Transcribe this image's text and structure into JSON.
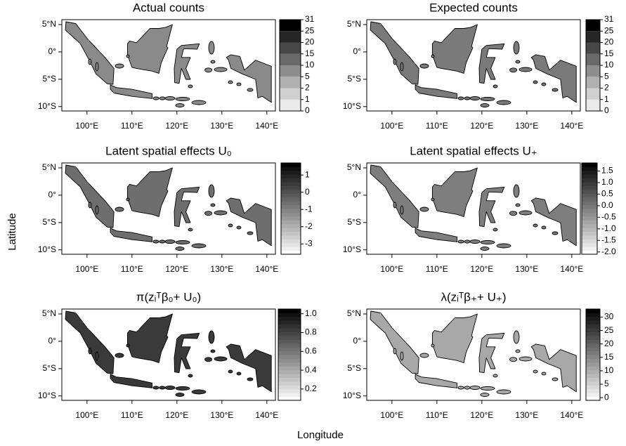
{
  "chart_data": [
    {
      "type": "map",
      "title": "Actual counts",
      "xlim": [
        94.4,
        141.9
      ],
      "ylim": [
        -10.8,
        5.9
      ],
      "xticks": [
        {
          "value": 100,
          "label": "100°E"
        },
        {
          "value": 110,
          "label": "110°E"
        },
        {
          "value": 120,
          "label": "120°E"
        },
        {
          "value": 130,
          "label": "130°E"
        },
        {
          "value": 140,
          "label": "140°E"
        }
      ],
      "yticks": [
        {
          "value": 5,
          "label": "5°N"
        },
        {
          "value": 0,
          "label": "0°"
        },
        {
          "value": -5,
          "label": "5°S"
        },
        {
          "value": -10,
          "label": "10°S"
        }
      ],
      "colorbar": {
        "scale": "breaks",
        "breaks": [
          0,
          1,
          2,
          5,
          10,
          15,
          20,
          25,
          31
        ],
        "colors": [
          "#ffffff",
          "#eaeaea",
          "#d0d0d0",
          "#b0b0b0",
          "#8e8e8e",
          "#6a6a6a",
          "#474747",
          "#262626",
          "#000000"
        ]
      }
    },
    {
      "type": "map",
      "title": "Expected counts",
      "xlim": [
        94.4,
        141.9
      ],
      "ylim": [
        -10.8,
        5.9
      ],
      "xticks": [
        {
          "value": 100,
          "label": "100°E"
        },
        {
          "value": 110,
          "label": "110°E"
        },
        {
          "value": 120,
          "label": "120°E"
        },
        {
          "value": 130,
          "label": "130°E"
        },
        {
          "value": 140,
          "label": "140°E"
        }
      ],
      "yticks": [
        {
          "value": 5,
          "label": "5°N"
        },
        {
          "value": 0,
          "label": "0°"
        },
        {
          "value": -5,
          "label": "5°S"
        },
        {
          "value": -10,
          "label": "10°S"
        }
      ],
      "colorbar": {
        "scale": "breaks",
        "breaks": [
          0,
          1,
          2,
          5,
          10,
          15,
          20,
          25,
          31
        ],
        "colors": [
          "#ffffff",
          "#eaeaea",
          "#d0d0d0",
          "#b0b0b0",
          "#8e8e8e",
          "#6a6a6a",
          "#474747",
          "#262626",
          "#000000"
        ]
      }
    },
    {
      "type": "map",
      "title": "Latent spatial effects U₀",
      "xlim": [
        94.4,
        141.9
      ],
      "ylim": [
        -10.8,
        5.9
      ],
      "xticks": [
        {
          "value": 100,
          "label": "100°E"
        },
        {
          "value": 110,
          "label": "110°E"
        },
        {
          "value": 120,
          "label": "120°E"
        },
        {
          "value": 130,
          "label": "130°E"
        },
        {
          "value": 140,
          "label": "140°E"
        }
      ],
      "yticks": [
        {
          "value": 5,
          "label": "5°N"
        },
        {
          "value": 0,
          "label": "0°"
        },
        {
          "value": -5,
          "label": "5°S"
        },
        {
          "value": -10,
          "label": "10°S"
        }
      ],
      "colorbar": {
        "scale": "linear",
        "clim": [
          -3.6,
          1.7
        ],
        "ticks": [
          1,
          0,
          -1,
          -2,
          -3
        ],
        "colors": [
          "#ffffff",
          "#000000"
        ]
      }
    },
    {
      "type": "map",
      "title": "Latent spatial effects U₊",
      "xlim": [
        94.4,
        141.9
      ],
      "ylim": [
        -10.8,
        5.9
      ],
      "xticks": [
        {
          "value": 100,
          "label": "100°E"
        },
        {
          "value": 110,
          "label": "110°E"
        },
        {
          "value": 120,
          "label": "120°E"
        },
        {
          "value": 130,
          "label": "130°E"
        },
        {
          "value": 140,
          "label": "140°E"
        }
      ],
      "yticks": [
        {
          "value": 5,
          "label": "5°N"
        },
        {
          "value": 0,
          "label": "0°"
        },
        {
          "value": -5,
          "label": "5°S"
        },
        {
          "value": -10,
          "label": "10°S"
        }
      ],
      "colorbar": {
        "scale": "linear",
        "clim": [
          -2.1,
          1.85
        ],
        "ticks": [
          {
            "value": 1.5,
            "label": "1.5"
          },
          {
            "value": 1,
            "label": "1.0"
          },
          {
            "value": 0.5,
            "label": "0.5"
          },
          {
            "value": 0,
            "label": "0.0"
          },
          {
            "value": -0.5,
            "label": "-0.5"
          },
          {
            "value": -1,
            "label": "-1.0"
          },
          {
            "value": -1.5,
            "label": "-1.5"
          },
          {
            "value": -2,
            "label": "-2.0"
          }
        ],
        "colors": [
          "#ffffff",
          "#000000"
        ]
      }
    },
    {
      "type": "map",
      "title": "π(zᵢᵀβ₀+ U₀)",
      "xlim": [
        94.4,
        141.9
      ],
      "ylim": [
        -10.8,
        5.9
      ],
      "xticks": [
        {
          "value": 100,
          "label": "100°E"
        },
        {
          "value": 110,
          "label": "110°E"
        },
        {
          "value": 120,
          "label": "120°E"
        },
        {
          "value": 130,
          "label": "130°E"
        },
        {
          "value": 140,
          "label": "140°E"
        }
      ],
      "yticks": [
        {
          "value": 5,
          "label": "5°N"
        },
        {
          "value": 0,
          "label": "0°"
        },
        {
          "value": -5,
          "label": "5°S"
        },
        {
          "value": -10,
          "label": "10°S"
        }
      ],
      "colorbar": {
        "scale": "linear",
        "clim": [
          0.08,
          1.05
        ],
        "ticks": [
          {
            "value": 1,
            "label": "1.0"
          },
          0.8,
          0.6,
          0.4,
          0.2
        ],
        "colors": [
          "#ffffff",
          "#000000"
        ]
      }
    },
    {
      "type": "map",
      "title": "λ(zᵢᵀβ₊+ U₊)",
      "xlim": [
        94.4,
        141.9
      ],
      "ylim": [
        -10.8,
        5.9
      ],
      "xticks": [
        {
          "value": 100,
          "label": "100°E"
        },
        {
          "value": 110,
          "label": "110°E"
        },
        {
          "value": 120,
          "label": "120°E"
        },
        {
          "value": 130,
          "label": "130°E"
        },
        {
          "value": 140,
          "label": "140°E"
        }
      ],
      "yticks": [
        {
          "value": 5,
          "label": "5°N"
        },
        {
          "value": 0,
          "label": "0°"
        },
        {
          "value": -5,
          "label": "5°S"
        },
        {
          "value": -10,
          "label": "10°S"
        }
      ],
      "colorbar": {
        "scale": "linear",
        "clim": [
          -1,
          33
        ],
        "ticks": [
          30,
          25,
          20,
          15,
          10,
          5,
          0
        ],
        "colors": [
          "#ffffff",
          "#000000"
        ]
      }
    }
  ],
  "shared_axes": {
    "x_label": "Longitude",
    "y_label": "Latitude"
  }
}
